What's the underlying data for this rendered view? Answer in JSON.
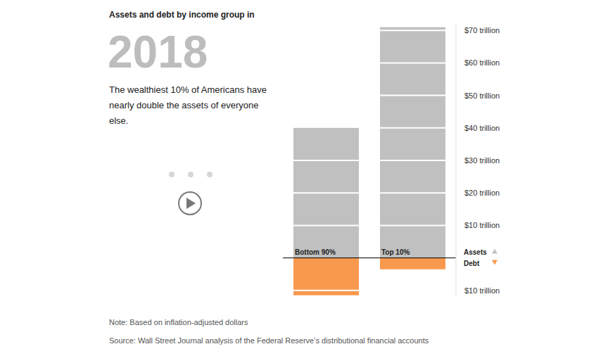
{
  "chart_data": {
    "type": "bar",
    "stacked": true,
    "grid": true,
    "title": "Assets and debt by income group in",
    "subtitle": "2018",
    "description": "The wealthiest 10% of Americans have nearly double the assets of everyone else.",
    "categories": [
      "Bottom 90%",
      "Top 10%"
    ],
    "series": [
      {
        "name": "Assets",
        "color": "#c0c0c0",
        "values": [
          40,
          71
        ]
      },
      {
        "name": "Debt",
        "color": "#f9994f",
        "values": [
          -11.5,
          -3.5
        ]
      }
    ],
    "ylim": [
      -12,
      72
    ],
    "yticks": [
      {
        "value": -10,
        "label": "$10 trillion"
      },
      {
        "value": 10,
        "label": "$10 trillion"
      },
      {
        "value": 20,
        "label": "$20 trillion"
      },
      {
        "value": 30,
        "label": "$30 trillion"
      },
      {
        "value": 40,
        "label": "$40 trillion"
      },
      {
        "value": 50,
        "label": "$50 trillion"
      },
      {
        "value": 60,
        "label": "$60 trillion"
      },
      {
        "value": 70,
        "label": "$70 trillion"
      }
    ],
    "note": "Note: Based on inflation-adjusted dollars",
    "source": "Source: Wall Street Journal analysis of the Federal Reserve’s distributional financial accounts"
  }
}
